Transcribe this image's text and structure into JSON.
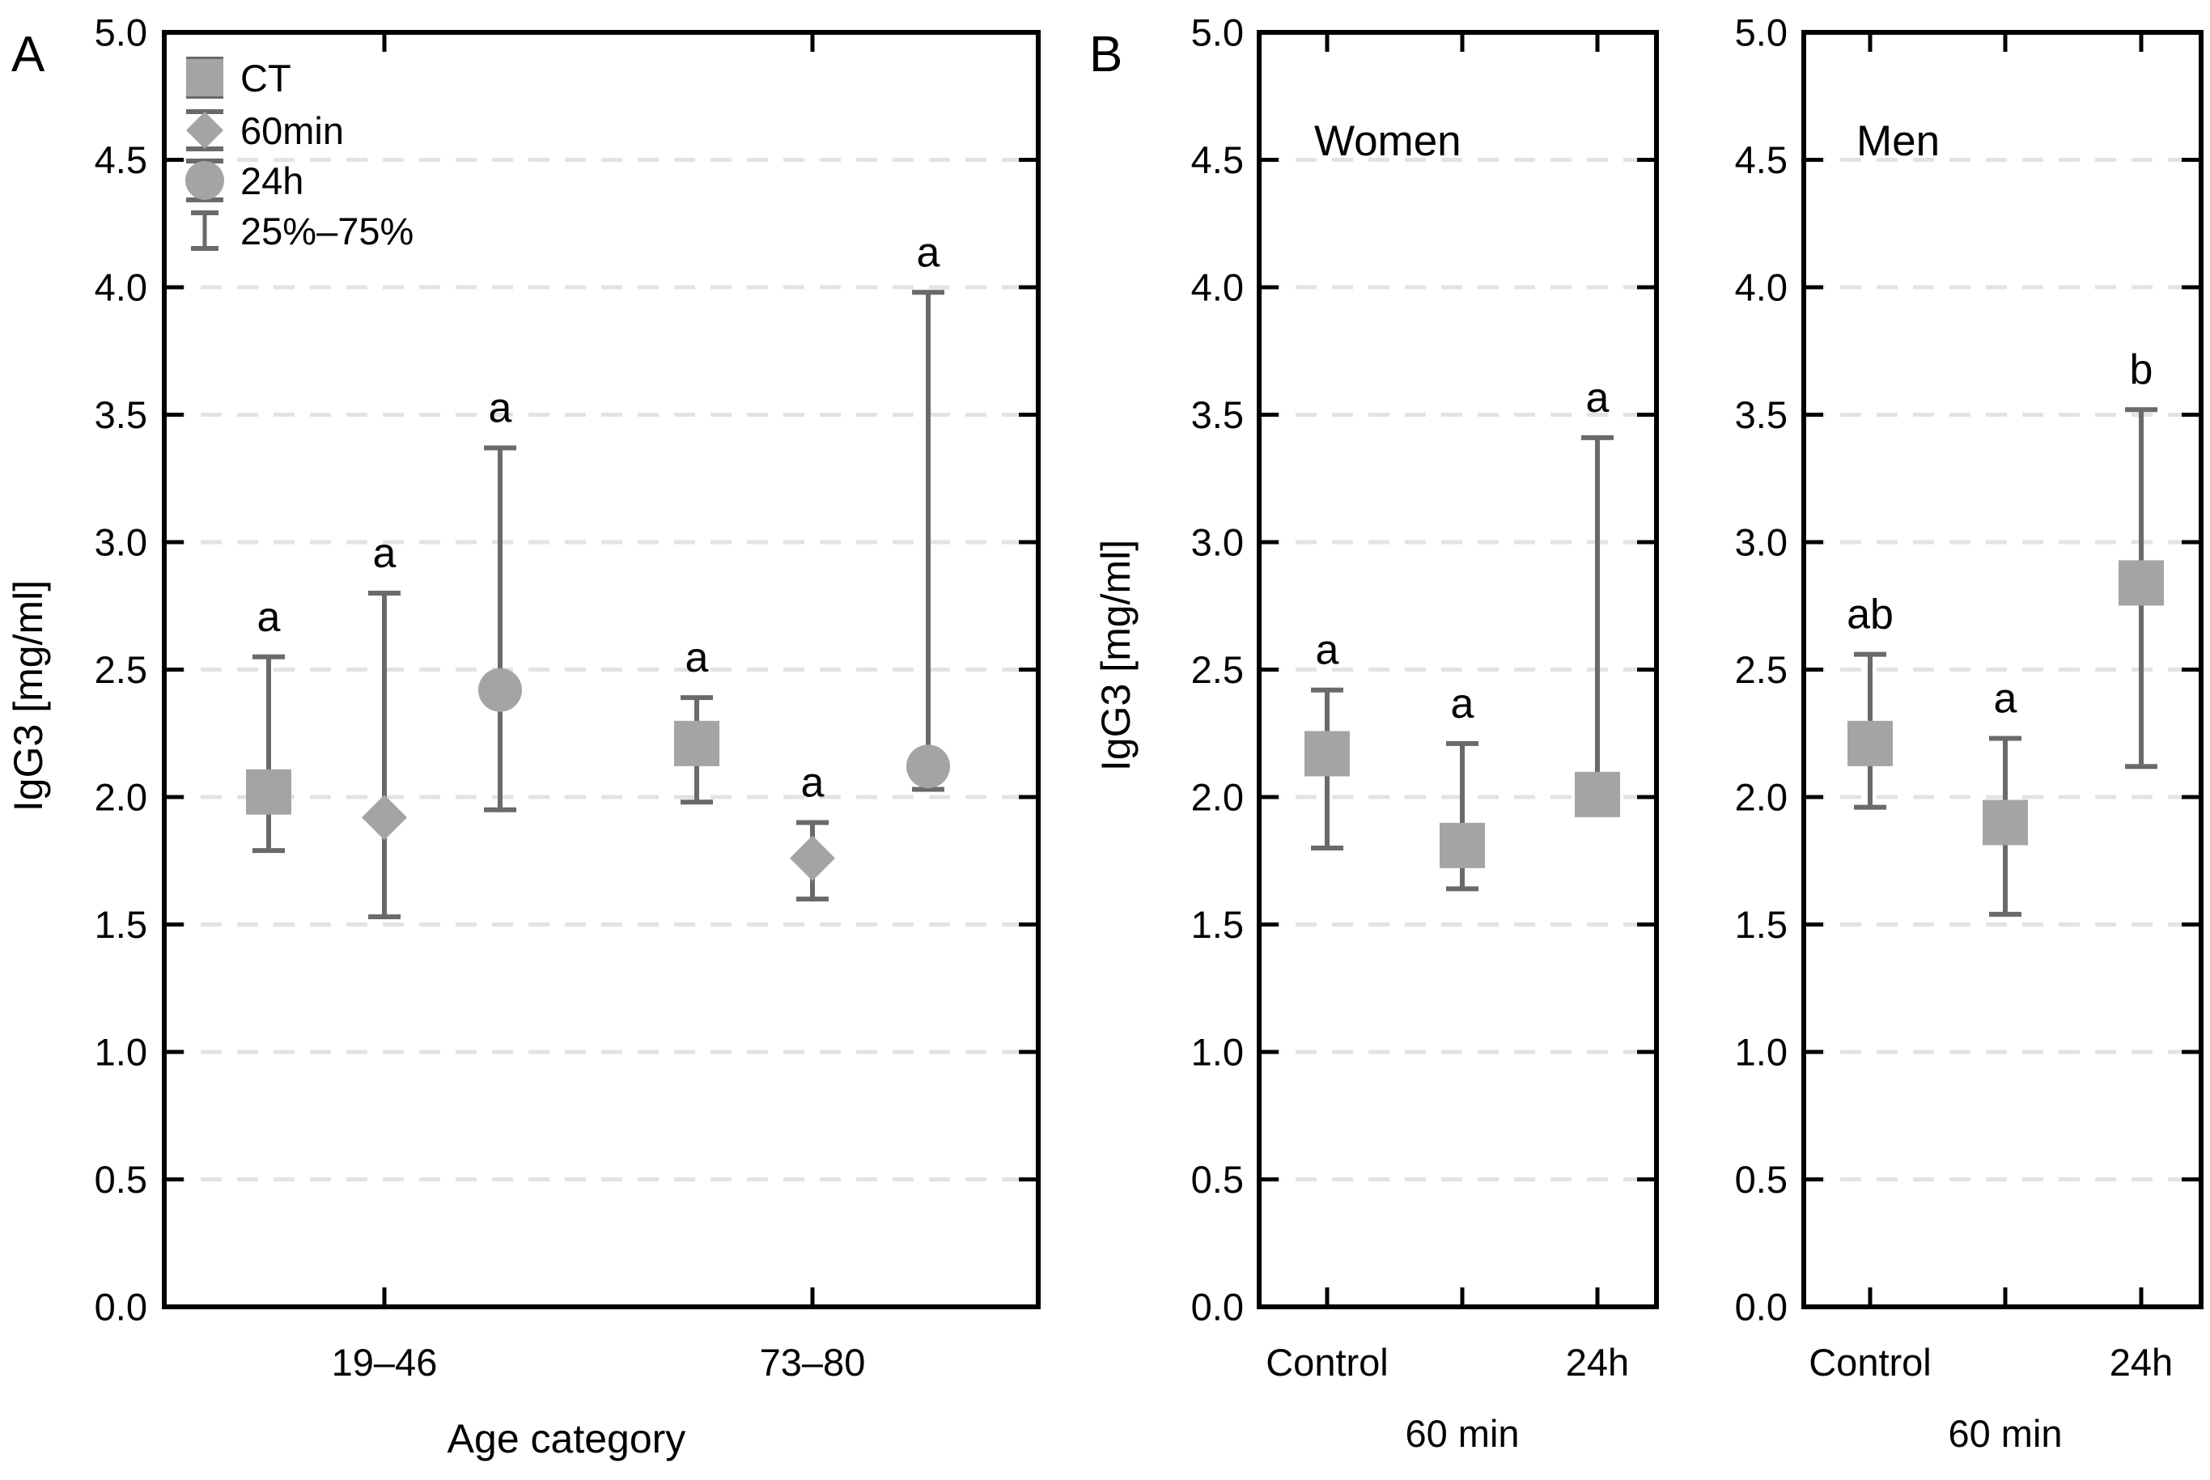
{
  "figure": {
    "panel_letters": [
      "A",
      "B"
    ],
    "y_ticks": [
      "0.0",
      "0.5",
      "1.0",
      "1.5",
      "2.0",
      "2.5",
      "3.0",
      "3.5",
      "4.0",
      "4.5",
      "5.0"
    ],
    "colors": {
      "marker_fill": "#a4a4a4",
      "whisker": "#6a6a6a",
      "axis": "#000000",
      "gridline": "#e3e3e3",
      "text": "#000000",
      "background": "#ffffff"
    },
    "legend": {
      "items": [
        {
          "marker": "square-icon",
          "label": "CT"
        },
        {
          "marker": "diamond-icon",
          "label": "60min"
        },
        {
          "marker": "circle-icon",
          "label": "24h"
        },
        {
          "marker": "errorbar-icon",
          "label": "25%–75%"
        }
      ]
    }
  },
  "chart_data": [
    {
      "type": "scatter",
      "panel": "A",
      "title": "",
      "xlabel": "Age category",
      "ylabel": "IgG3 [mg/ml]",
      "ylim": [
        0.0,
        5.0
      ],
      "ytick_step": 0.5,
      "grid": "horizontal-dashed",
      "legend_position": "top-left-inside",
      "error_bar_meaning": "25%–75%",
      "categories": [
        "19–46",
        "73–80"
      ],
      "category_label_rows": [
        0,
        0
      ],
      "series": [
        {
          "name": "CT",
          "marker": "square",
          "median": [
            2.02,
            2.21
          ],
          "q25": [
            1.79,
            1.98
          ],
          "q75": [
            2.55,
            2.39
          ],
          "sig_letters": [
            "a",
            "a"
          ]
        },
        {
          "name": "60min",
          "marker": "diamond",
          "median": [
            1.92,
            1.76
          ],
          "q25": [
            1.53,
            1.6
          ],
          "q75": [
            2.8,
            1.9
          ],
          "sig_letters": [
            "a",
            "a"
          ]
        },
        {
          "name": "24h",
          "marker": "circle",
          "median": [
            2.42,
            2.12
          ],
          "q25": [
            1.95,
            2.03
          ],
          "q75": [
            3.37,
            3.98
          ],
          "sig_letters": [
            "a",
            "a"
          ]
        }
      ]
    },
    {
      "type": "scatter",
      "panel": "B",
      "title": "Women",
      "xlabel": "",
      "ylabel": "IgG3 [mg/ml]",
      "ylim": [
        0.0,
        5.0
      ],
      "ytick_step": 0.5,
      "grid": "horizontal-dashed",
      "categories": [
        "Control",
        "60 min",
        "24h"
      ],
      "category_label_rows": [
        0,
        1,
        0
      ],
      "series": [
        {
          "name": "CT",
          "marker": "square",
          "median": [
            2.17,
            1.81,
            2.01
          ],
          "q25": [
            1.8,
            1.64,
            1.95
          ],
          "q75": [
            2.42,
            2.21,
            3.41
          ],
          "sig_letters": [
            "a",
            "a",
            "a"
          ]
        }
      ]
    },
    {
      "type": "scatter",
      "panel": "B",
      "title": "Men",
      "xlabel": "",
      "ylabel": "",
      "ylim": [
        0.0,
        5.0
      ],
      "ytick_step": 0.5,
      "grid": "horizontal-dashed",
      "categories": [
        "Control",
        "60 min",
        "24h"
      ],
      "category_label_rows": [
        0,
        1,
        0
      ],
      "series": [
        {
          "name": "CT",
          "marker": "square",
          "median": [
            2.21,
            1.9,
            2.84
          ],
          "q25": [
            1.96,
            1.54,
            2.12
          ],
          "q75": [
            2.56,
            2.23,
            3.52
          ],
          "sig_letters": [
            "ab",
            "a",
            "b"
          ]
        }
      ]
    }
  ]
}
